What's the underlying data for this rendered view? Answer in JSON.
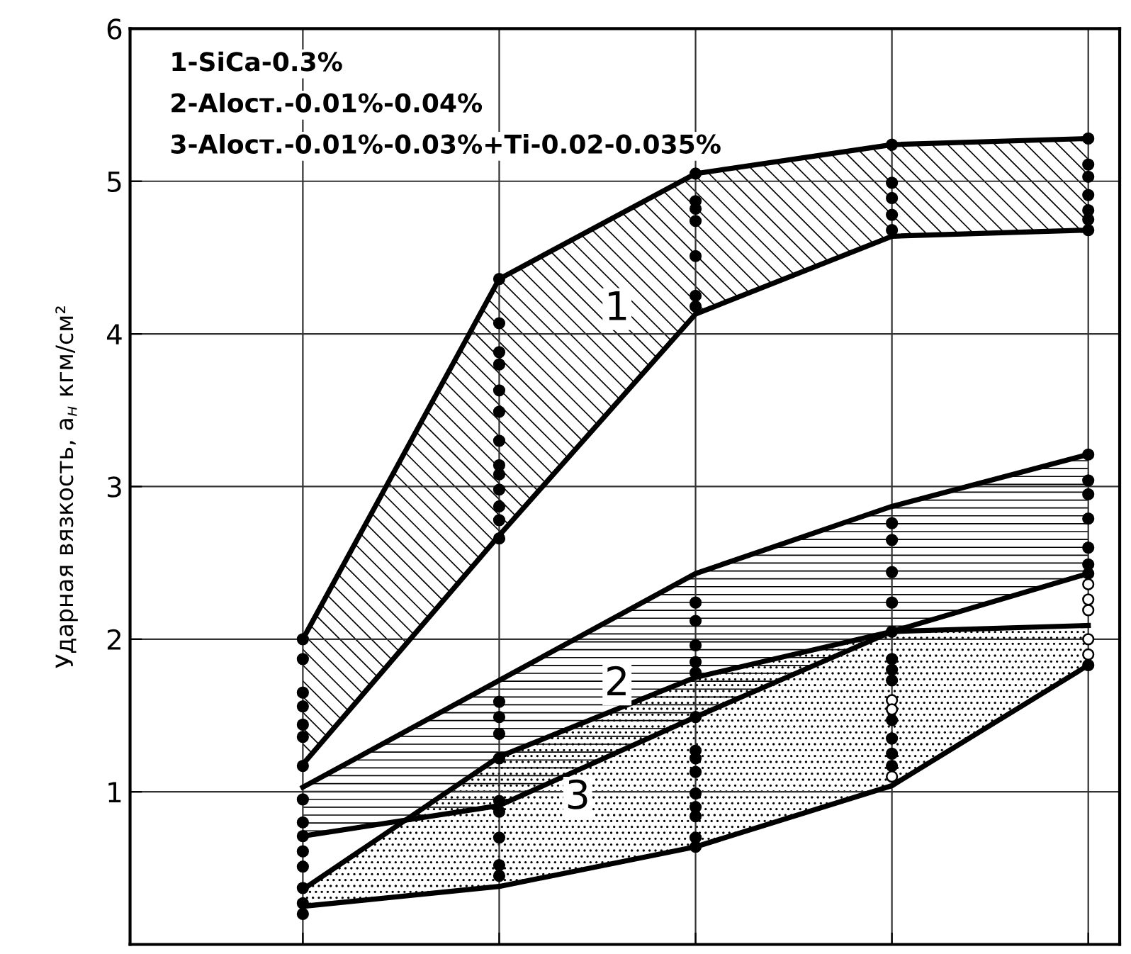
{
  "chart_data": {
    "type": "area",
    "ylabel": "Ударная вязкость, a$_{н}$ кгм/см²",
    "annotations": [
      "1-SiCa-0.3%",
      "2-Alост.-0.01%-0.04%",
      "3-Alост.-0.01%-0.03%+Ti-0.02-0.035%"
    ],
    "categories": [
      null,
      null,
      null,
      null,
      null
    ],
    "ylim": [
      0,
      6
    ],
    "yticks": [
      1,
      2,
      3,
      4,
      5,
      6
    ],
    "grid": true,
    "legend": false,
    "tick_labels": "y",
    "series": [
      {
        "name": "1",
        "color": "#000000",
        "values": [
          2.0,
          4.36,
          5.05,
          5.24,
          5.28
        ]
      },
      {
        "type": "line",
        "color": "#000000",
        "values": [
          1.18,
          2.68,
          4.13,
          4.64,
          4.68
        ]
      },
      {
        "name": "2",
        "color": "#000000",
        "values": [
          1.03,
          1.73,
          2.43,
          2.87,
          3.21
        ]
      },
      {
        "type": "line",
        "color": "#000000",
        "values": [
          0.71,
          0.91,
          1.49,
          2.05,
          2.43
        ]
      },
      {
        "name": "3",
        "color": "#000000",
        "values": [
          0.36,
          1.23,
          1.75,
          2.05,
          2.09
        ]
      },
      {
        "type": "line",
        "color": "#000000",
        "values": [
          0.25,
          0.38,
          0.64,
          1.04,
          1.83
        ]
      },
      {
        "type": "scatter",
        "color": "#000000",
        "values": [
          2.0,
          4.36,
          5.05,
          5.24,
          5.28
        ]
      },
      {
        "type": "scatter",
        "color": "#000000",
        "values": [
          1.87,
          4.07,
          4.87,
          4.99,
          5.11
        ]
      },
      {
        "type": "scatter",
        "color": "#000000",
        "values": [
          1.65,
          3.88,
          4.82,
          4.89,
          5.03
        ]
      },
      {
        "type": "scatter",
        "color": "#000000",
        "values": [
          1.56,
          3.8,
          4.74,
          4.78,
          4.91
        ]
      },
      {
        "type": "scatter",
        "color": "#000000",
        "values": [
          null,
          3.63,
          4.51,
          4.68,
          4.81
        ]
      },
      {
        "type": "scatter",
        "color": "#000000",
        "values": [
          1.44,
          3.49,
          4.25,
          2.76,
          4.75
        ]
      },
      {
        "type": "scatter",
        "color": "#000000",
        "values": [
          1.36,
          3.3,
          4.18,
          2.65,
          4.68
        ]
      },
      {
        "type": "scatter",
        "color": "#000000",
        "values": [
          1.17,
          3.14,
          2.24,
          2.44,
          3.21
        ]
      },
      {
        "type": "scatter",
        "color": "#000000",
        "values": [
          0.95,
          3.08,
          2.12,
          2.24,
          3.04
        ]
      },
      {
        "type": "scatter",
        "color": "#000000",
        "values": [
          0.8,
          2.98,
          1.96,
          2.05,
          2.95
        ]
      },
      {
        "type": "scatter",
        "color": "#000000",
        "values": [
          0.71,
          2.87,
          1.85,
          1.87,
          2.79
        ]
      },
      {
        "type": "scatter",
        "color": "#000000",
        "values": [
          0.61,
          2.78,
          1.78,
          1.8,
          2.6
        ]
      },
      {
        "type": "scatter",
        "color": "#000000",
        "values": [
          0.51,
          2.66,
          1.49,
          1.73,
          2.49
        ]
      },
      {
        "type": "scatter",
        "color": "#000000",
        "values": [
          0.37,
          1.59,
          1.27,
          1.47,
          2.43
        ]
      },
      {
        "type": "scatter",
        "color": "#000000",
        "values": [
          0.27,
          1.49,
          1.22,
          1.35,
          1.83
        ]
      },
      {
        "type": "scatter",
        "color": "#000000",
        "values": [
          0.2,
          1.38,
          1.13,
          1.25,
          null
        ]
      },
      {
        "type": "scatter",
        "color": "#000000",
        "values": [
          null,
          1.22,
          0.99,
          1.17,
          null
        ]
      },
      {
        "type": "scatter",
        "color": "#000000",
        "values": [
          null,
          0.94,
          0.9,
          null,
          null
        ]
      },
      {
        "type": "scatter",
        "color": "#000000",
        "values": [
          null,
          0.87,
          0.84,
          null,
          null
        ]
      },
      {
        "type": "scatter",
        "color": "#000000",
        "values": [
          null,
          0.7,
          0.7,
          null,
          null
        ]
      },
      {
        "type": "scatter",
        "color": "#000000",
        "values": [
          null,
          0.52,
          0.64,
          null,
          null
        ]
      },
      {
        "type": "scatter",
        "color": "#000000",
        "values": [
          null,
          0.45,
          null,
          null,
          null
        ]
      },
      {
        "type": "scatter",
        "color": "#ffffff",
        "values": [
          null,
          null,
          null,
          1.6,
          2.36
        ]
      },
      {
        "type": "scatter",
        "color": "#ffffff",
        "values": [
          null,
          null,
          null,
          1.54,
          2.26
        ]
      },
      {
        "type": "scatter",
        "color": "#ffffff",
        "values": [
          null,
          null,
          null,
          1.1,
          2.19
        ]
      },
      {
        "type": "scatter",
        "color": "#ffffff",
        "values": [
          null,
          null,
          null,
          null,
          2.0
        ]
      },
      {
        "type": "scatter",
        "color": "#ffffff",
        "values": [
          null,
          null,
          null,
          null,
          1.9
        ]
      }
    ]
  }
}
